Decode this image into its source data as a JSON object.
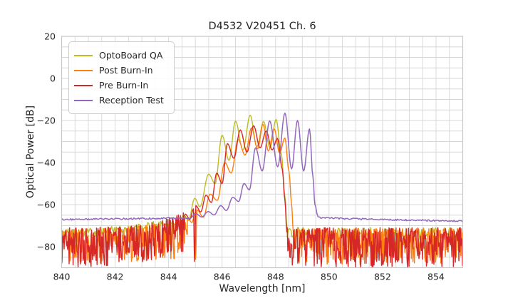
{
  "chart_data": {
    "type": "line",
    "title": "D4532 V20451 Ch. 6",
    "xlabel": "Wavelength [nm]",
    "ylabel": "Optical Power [dB]",
    "xlim": [
      840,
      855
    ],
    "ylim": [
      -90,
      20
    ],
    "grid": {
      "on": true,
      "x_step": 0.5,
      "y_step": 5,
      "color": "#d7d7d7",
      "frame_color": "#c6c6c6"
    },
    "xaxis": {
      "ticks": [
        840,
        842,
        844,
        846,
        848,
        850,
        852,
        854
      ],
      "tick_labels": [
        "840",
        "842",
        "844",
        "846",
        "848",
        "850",
        "852",
        "854"
      ]
    },
    "yaxis": {
      "ticks": [
        20,
        0,
        -20,
        -40,
        -60,
        -80
      ],
      "tick_labels": [
        "20",
        "0",
        "−20",
        "−40",
        "−60",
        "−80"
      ]
    },
    "legend": {
      "position": "upper left",
      "items": [
        {
          "label": "OptoBoard QA",
          "color": "#bcbd22"
        },
        {
          "label": "Post Burn-In",
          "color": "#ff7f0e"
        },
        {
          "label": "Pre Burn-In",
          "color": "#d62728"
        },
        {
          "label": "Reception Test",
          "color": "#9467bd"
        }
      ]
    },
    "series": [
      {
        "name": "OptoBoard QA",
        "color": "#bcbd22",
        "line_width": 1.4,
        "seed": 101,
        "noise_left": {
          "type": "line",
          "x0": 840,
          "x1": 844.36,
          "b0": -73.5,
          "b1": -68.5,
          "amp": 2.1,
          "curve": 1.6
        },
        "points": [
          [
            844.36,
            -68.5
          ],
          [
            844.57,
            -65.0
          ],
          [
            844.74,
            -67.5
          ],
          [
            844.98,
            -57.0
          ],
          [
            845.17,
            -61.0
          ],
          [
            845.5,
            -45.5
          ],
          [
            845.74,
            -50.0
          ],
          [
            846.0,
            -27.0
          ],
          [
            846.26,
            -39.0
          ],
          [
            846.5,
            -20.3
          ],
          [
            846.78,
            -34.0
          ],
          [
            847.05,
            -17.5
          ],
          [
            847.3,
            -32.5
          ],
          [
            847.55,
            -20.5
          ],
          [
            847.79,
            -33.0
          ],
          [
            848.02,
            -19.5
          ],
          [
            848.22,
            -36.0
          ],
          [
            848.34,
            -55.0
          ],
          [
            848.44,
            -72.5
          ]
        ],
        "noise_right": {
          "type": "line",
          "x0": 848.44,
          "x1": 855,
          "b0": -73.8,
          "b1": -73.8,
          "amp": 3.0,
          "curve": 1
        }
      },
      {
        "name": "Post Burn-In",
        "color": "#ff7f0e",
        "line_width": 1.4,
        "seed": 202,
        "noise_left": {
          "type": "hash",
          "x0": 840,
          "x1": 844.7,
          "hi0": -71.5,
          "hi1": -66.0,
          "hic": 3,
          "lo0": -88.5,
          "lo1": -86.0,
          "loc": 1,
          "pow": 1.7
        },
        "points": [
          [
            844.7,
            -66.5
          ],
          [
            844.88,
            -68.5
          ],
          [
            844.98,
            -64.0
          ],
          [
            845.01,
            -86.0
          ],
          [
            845.06,
            -62.5
          ],
          [
            845.3,
            -66.0
          ],
          [
            845.55,
            -55.0
          ],
          [
            845.82,
            -58.0
          ],
          [
            846.1,
            -40.0
          ],
          [
            846.34,
            -45.0
          ],
          [
            846.6,
            -29.0
          ],
          [
            846.86,
            -36.5
          ],
          [
            847.1,
            -23.5
          ],
          [
            847.33,
            -33.5
          ],
          [
            847.53,
            -21.8
          ],
          [
            847.73,
            -34.5
          ],
          [
            847.95,
            -24.0
          ],
          [
            848.15,
            -35.5
          ],
          [
            848.35,
            -28.3
          ],
          [
            848.5,
            -44.0
          ],
          [
            848.6,
            -60.0
          ],
          [
            848.66,
            -72.5
          ]
        ],
        "noise_right": {
          "type": "hash",
          "x0": 848.66,
          "x1": 855,
          "hi0": -71.5,
          "hi1": -71.5,
          "hic": 1,
          "lo0": -88.5,
          "lo1": -88.5,
          "loc": 1,
          "pow": 1.7
        }
      },
      {
        "name": "Pre Burn-In",
        "color": "#d62728",
        "line_width": 1.4,
        "seed": 303,
        "noise_left": {
          "type": "hash",
          "x0": 840,
          "x1": 844.62,
          "hi0": -71.0,
          "hi1": -63.5,
          "hic": 3.5,
          "lo0": -90,
          "lo1": -82,
          "loc": 2.5,
          "pow": 1.5
        },
        "points": [
          [
            844.62,
            -64.5
          ],
          [
            844.8,
            -67.0
          ],
          [
            844.93,
            -62.0
          ],
          [
            844.97,
            -87.0
          ],
          [
            845.02,
            -60.5
          ],
          [
            845.2,
            -63.5
          ],
          [
            845.4,
            -55.5
          ],
          [
            845.6,
            -59.0
          ],
          [
            845.8,
            -45.0
          ],
          [
            846.0,
            -50.0
          ],
          [
            846.2,
            -31.0
          ],
          [
            846.44,
            -38.0
          ],
          [
            846.68,
            -24.5
          ],
          [
            846.93,
            -35.0
          ],
          [
            847.18,
            -22.5
          ],
          [
            847.42,
            -33.0
          ],
          [
            847.65,
            -25.0
          ],
          [
            847.87,
            -34.0
          ],
          [
            848.07,
            -28.5
          ],
          [
            848.25,
            -43.0
          ],
          [
            848.35,
            -58.0
          ],
          [
            848.42,
            -73.0
          ]
        ],
        "noise_right": {
          "type": "hash",
          "x0": 848.42,
          "x1": 855,
          "hi0": -71.0,
          "hi1": -71.0,
          "hic": 1,
          "lo0": -90,
          "lo1": -90,
          "loc": 1,
          "pow": 1.5
        }
      },
      {
        "name": "Reception Test",
        "color": "#9467bd",
        "line_width": 1.5,
        "seed": 404,
        "noise_left": {
          "type": "line",
          "x0": 840,
          "x1": 844.55,
          "b0": -67.1,
          "b1": -66.4,
          "amp": 0.38,
          "curve": 1
        },
        "points": [
          [
            844.55,
            -66.4
          ],
          [
            844.78,
            -66.7
          ],
          [
            845.02,
            -64.3
          ],
          [
            845.24,
            -65.9
          ],
          [
            845.48,
            -63.3
          ],
          [
            845.7,
            -64.9
          ],
          [
            845.95,
            -60.5
          ],
          [
            846.16,
            -62.8
          ],
          [
            846.4,
            -56.5
          ],
          [
            846.62,
            -58.5
          ],
          [
            846.82,
            -50.0
          ],
          [
            847.02,
            -53.0
          ],
          [
            847.25,
            -33.0
          ],
          [
            847.5,
            -44.0
          ],
          [
            847.78,
            -20.2
          ],
          [
            848.08,
            -42.0
          ],
          [
            848.35,
            -16.5
          ],
          [
            848.6,
            -43.0
          ],
          [
            848.82,
            -20.0
          ],
          [
            849.05,
            -44.0
          ],
          [
            849.27,
            -24.0
          ],
          [
            849.4,
            -47.0
          ],
          [
            849.47,
            -60.0
          ],
          [
            849.58,
            -65.3
          ]
        ],
        "noise_right": {
          "type": "line",
          "x0": 849.58,
          "x1": 855,
          "b0": -65.9,
          "b1": -67.8,
          "amp": 0.38,
          "curve": 0.55
        }
      }
    ]
  }
}
